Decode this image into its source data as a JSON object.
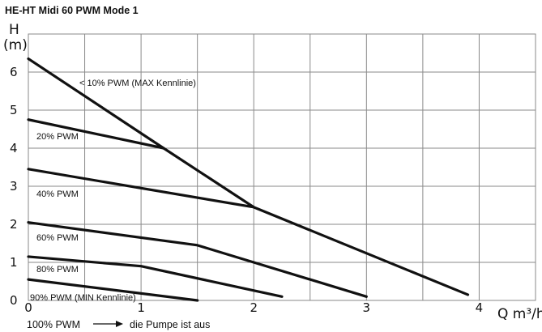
{
  "chart_data": {
    "type": "line",
    "title": "HE-HT Midi 60 PWM Mode 1",
    "ylabel_lines": [
      "H",
      "(m)"
    ],
    "xlabel": "Q m³/h",
    "xlim": [
      0,
      4.5
    ],
    "ylim": [
      0,
      7
    ],
    "xticks": [
      "0",
      "1",
      "2",
      "3",
      "4"
    ],
    "yticks": [
      "0",
      "1",
      "2",
      "3",
      "4",
      "5",
      "6"
    ],
    "grid": true,
    "series": [
      {
        "name": "< 10% PWM (MAX Kennlinie)",
        "x": [
          0,
          1.2,
          2.0,
          3.9
        ],
        "y": [
          6.35,
          4.0,
          2.45,
          0.15
        ]
      },
      {
        "name": "20% PWM",
        "x": [
          0,
          1.2
        ],
        "y": [
          4.75,
          4.0
        ]
      },
      {
        "name": "40% PWM",
        "x": [
          0,
          2.0
        ],
        "y": [
          3.45,
          2.45
        ]
      },
      {
        "name": "60% PWM",
        "x": [
          0,
          1.5,
          3.0
        ],
        "y": [
          2.05,
          1.45,
          0.1
        ]
      },
      {
        "name": "80% PWM",
        "x": [
          0,
          1.0,
          2.25
        ],
        "y": [
          1.15,
          0.9,
          0.1
        ]
      },
      {
        "name": "90% PWM (MIN Kennlinie)",
        "x": [
          0,
          1.5
        ],
        "y": [
          0.55,
          0.0
        ]
      }
    ],
    "footer": {
      "left": "100% PWM",
      "right": "die Pumpe ist aus"
    }
  }
}
